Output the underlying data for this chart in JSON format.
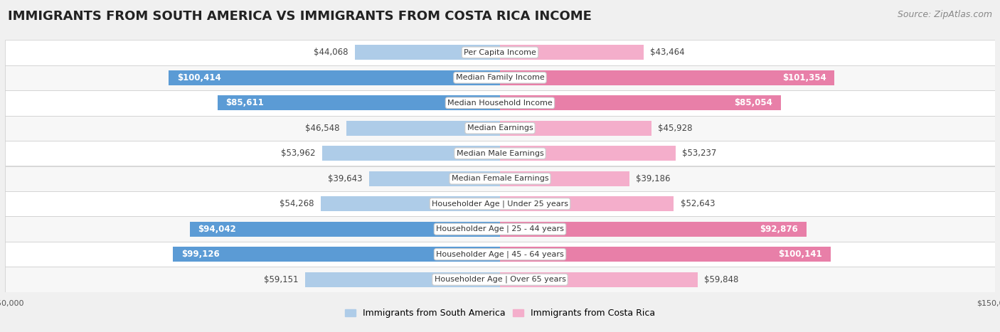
{
  "title": "IMMIGRANTS FROM SOUTH AMERICA VS IMMIGRANTS FROM COSTA RICA INCOME",
  "source": "Source: ZipAtlas.com",
  "categories": [
    "Per Capita Income",
    "Median Family Income",
    "Median Household Income",
    "Median Earnings",
    "Median Male Earnings",
    "Median Female Earnings",
    "Householder Age | Under 25 years",
    "Householder Age | 25 - 44 years",
    "Householder Age | 45 - 64 years",
    "Householder Age | Over 65 years"
  ],
  "south_america_values": [
    44068,
    100414,
    85611,
    46548,
    53962,
    39643,
    54268,
    94042,
    99126,
    59151
  ],
  "costa_rica_values": [
    43464,
    101354,
    85054,
    45928,
    53237,
    39186,
    52643,
    92876,
    100141,
    59848
  ],
  "south_america_labels": [
    "$44,068",
    "$100,414",
    "$85,611",
    "$46,548",
    "$53,962",
    "$39,643",
    "$54,268",
    "$94,042",
    "$99,126",
    "$59,151"
  ],
  "costa_rica_labels": [
    "$43,464",
    "$101,354",
    "$85,054",
    "$45,928",
    "$53,237",
    "$39,186",
    "$52,643",
    "$92,876",
    "$100,141",
    "$59,848"
  ],
  "max_value": 150000,
  "color_south_america_light": "#AECCE8",
  "color_south_america_dark": "#5B9BD5",
  "color_costa_rica_light": "#F4AECB",
  "color_costa_rica_dark": "#E87FA8",
  "background_color": "#f0f0f0",
  "row_bg_light": "#f7f7f7",
  "row_bg_white": "#ffffff",
  "title_fontsize": 13,
  "source_fontsize": 9,
  "bar_label_fontsize": 8.5,
  "category_fontsize": 8,
  "legend_fontsize": 9,
  "axis_label_fontsize": 8,
  "inside_label_threshold": 60000
}
